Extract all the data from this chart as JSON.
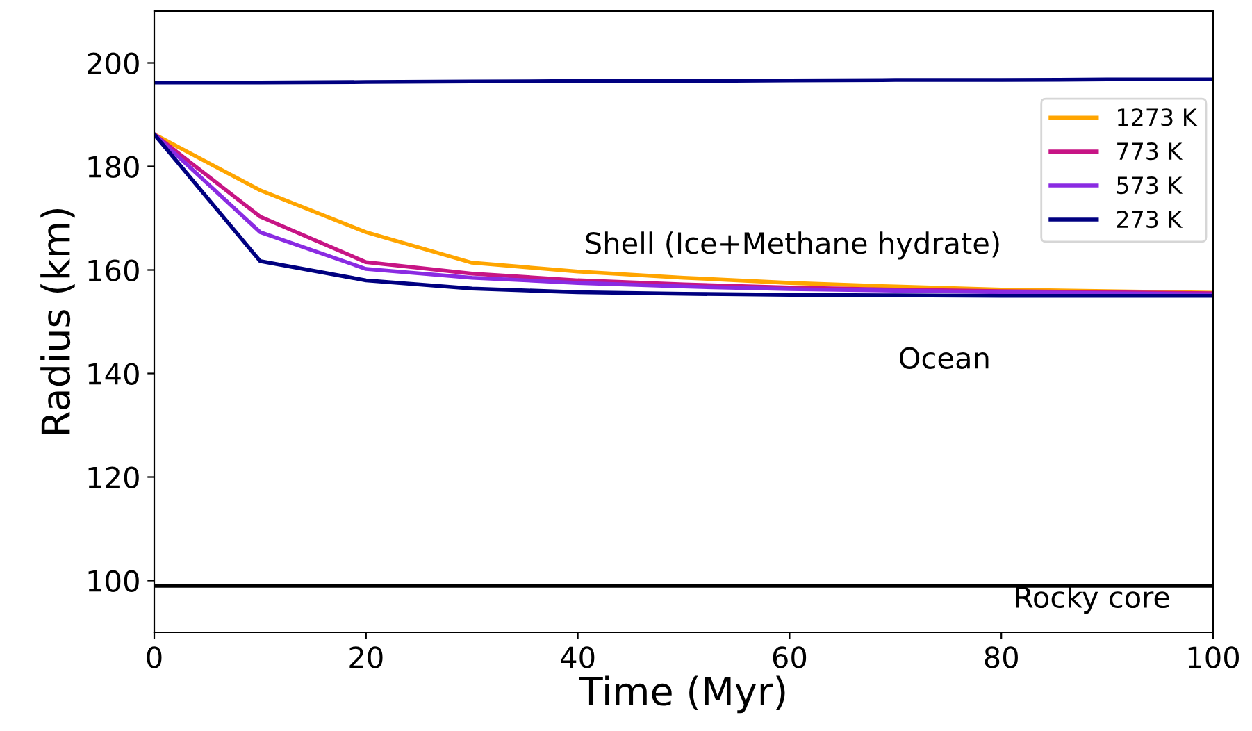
{
  "chart_data": {
    "type": "line",
    "xlabel": "Time (Myr)",
    "ylabel": "Radius (km)",
    "x": [
      0,
      10,
      20,
      30,
      40,
      50,
      60,
      70,
      80,
      90,
      100
    ],
    "series": [
      {
        "name": "1273 K",
        "color": "#ffa500",
        "values": [
          186.2,
          175.4,
          167.3,
          161.4,
          159.7,
          158.5,
          157.5,
          156.8,
          156.2,
          155.9,
          155.6
        ]
      },
      {
        "name": "773 K",
        "color": "#c71585",
        "values": [
          186.2,
          170.3,
          161.5,
          159.3,
          158.0,
          157.2,
          156.6,
          156.2,
          155.9,
          155.7,
          155.5
        ]
      },
      {
        "name": "573 K",
        "color": "#8a2be2",
        "values": [
          186.2,
          167.3,
          160.2,
          158.5,
          157.5,
          156.8,
          156.3,
          156.0,
          155.7,
          155.5,
          155.3
        ]
      },
      {
        "name": "273 K",
        "color": "#000080",
        "values": [
          186.2,
          161.7,
          158.0,
          156.4,
          155.7,
          155.4,
          155.2,
          155.1,
          155.0,
          155.0,
          155.0
        ]
      },
      {
        "color": "#000080",
        "values": [
          196.2,
          196.2,
          196.3,
          196.4,
          196.5,
          196.5,
          196.6,
          196.7,
          196.7,
          196.8,
          196.8
        ]
      }
    ],
    "xlim": [
      0,
      100
    ],
    "xticks": [
      0,
      20,
      40,
      60,
      80,
      100
    ],
    "ylim": [
      90,
      210
    ],
    "yticks": [
      100,
      120,
      140,
      160,
      180,
      200
    ],
    "ref_lines": [
      {
        "axis": "y",
        "value": 99,
        "color": "#000000"
      }
    ],
    "annotations": [
      "Shell (Ice+Methane hydrate)",
      "Ocean",
      "Rocky core"
    ],
    "legend": "top right",
    "grid": false
  }
}
